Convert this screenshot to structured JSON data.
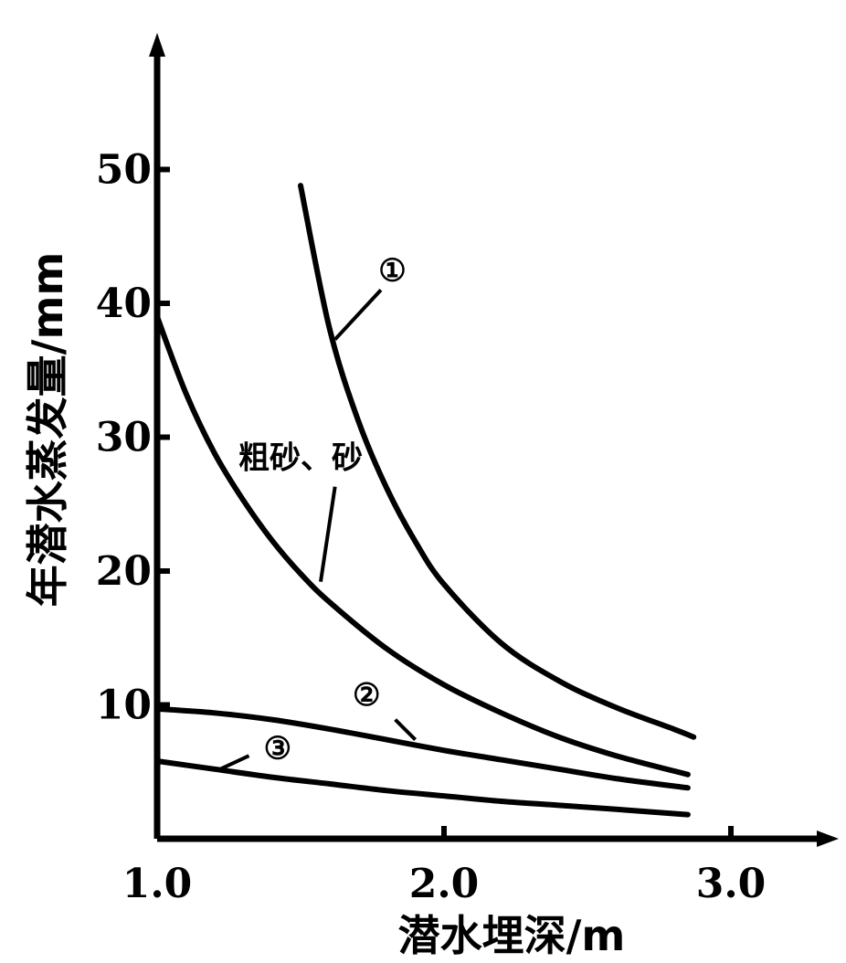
{
  "chart_data": {
    "type": "line",
    "xlabel": "潜水埋深/m",
    "ylabel": "年潜水蒸发量/mm",
    "xlim": [
      1.0,
      3.3
    ],
    "ylim": [
      0,
      55
    ],
    "x_ticks": [
      {
        "value": 1.0,
        "label": "1.0"
      },
      {
        "value": 2.0,
        "label": "2.0"
      },
      {
        "value": 3.0,
        "label": "3.0"
      }
    ],
    "y_ticks": [
      {
        "value": 10,
        "label": "10"
      },
      {
        "value": 20,
        "label": "20"
      },
      {
        "value": 30,
        "label": "30"
      },
      {
        "value": 40,
        "label": "40"
      },
      {
        "value": 50,
        "label": "50"
      }
    ],
    "grid": false,
    "series": [
      {
        "name": "①",
        "label_x": 1.82,
        "label_y": 42.5,
        "leader": [
          [
            1.78,
            41.0
          ],
          [
            1.62,
            37.3
          ]
        ],
        "x": [
          1.5,
          1.6,
          1.7,
          1.8,
          1.9,
          2.0,
          2.2,
          2.4,
          2.6,
          2.8,
          2.87
        ],
        "y": [
          48.8,
          38.2,
          31.3,
          26.2,
          22.2,
          19.0,
          14.6,
          11.8,
          9.8,
          8.2,
          7.6
        ]
      },
      {
        "name": "粗砂、砂",
        "label_x": 1.5,
        "label_y": 28.5,
        "leader": [
          [
            1.62,
            26.3
          ],
          [
            1.57,
            19.2
          ]
        ],
        "x": [
          1.0,
          1.1,
          1.2,
          1.3,
          1.4,
          1.5,
          1.6,
          1.8,
          2.0,
          2.2,
          2.4,
          2.6,
          2.85
        ],
        "y": [
          39.0,
          33.3,
          28.8,
          25.3,
          22.3,
          19.8,
          17.7,
          14.2,
          11.5,
          9.4,
          7.6,
          6.2,
          4.8
        ]
      },
      {
        "name": "②",
        "label_x": 1.73,
        "label_y": 10.8,
        "leader": [
          [
            1.83,
            8.9
          ],
          [
            1.9,
            7.4
          ]
        ],
        "x": [
          1.0,
          1.2,
          1.4,
          1.6,
          1.8,
          2.0,
          2.2,
          2.4,
          2.6,
          2.85
        ],
        "y": [
          9.7,
          9.4,
          8.9,
          8.2,
          7.4,
          6.6,
          5.9,
          5.2,
          4.5,
          3.8
        ]
      },
      {
        "name": "③",
        "label_x": 1.42,
        "label_y": 6.8,
        "leader": [
          [
            1.32,
            6.2
          ],
          [
            1.22,
            5.2
          ]
        ],
        "x": [
          1.0,
          1.2,
          1.4,
          1.6,
          1.8,
          2.0,
          2.2,
          2.4,
          2.6,
          2.85
        ],
        "y": [
          5.8,
          5.2,
          4.6,
          4.1,
          3.6,
          3.2,
          2.8,
          2.5,
          2.2,
          1.8
        ]
      }
    ]
  }
}
